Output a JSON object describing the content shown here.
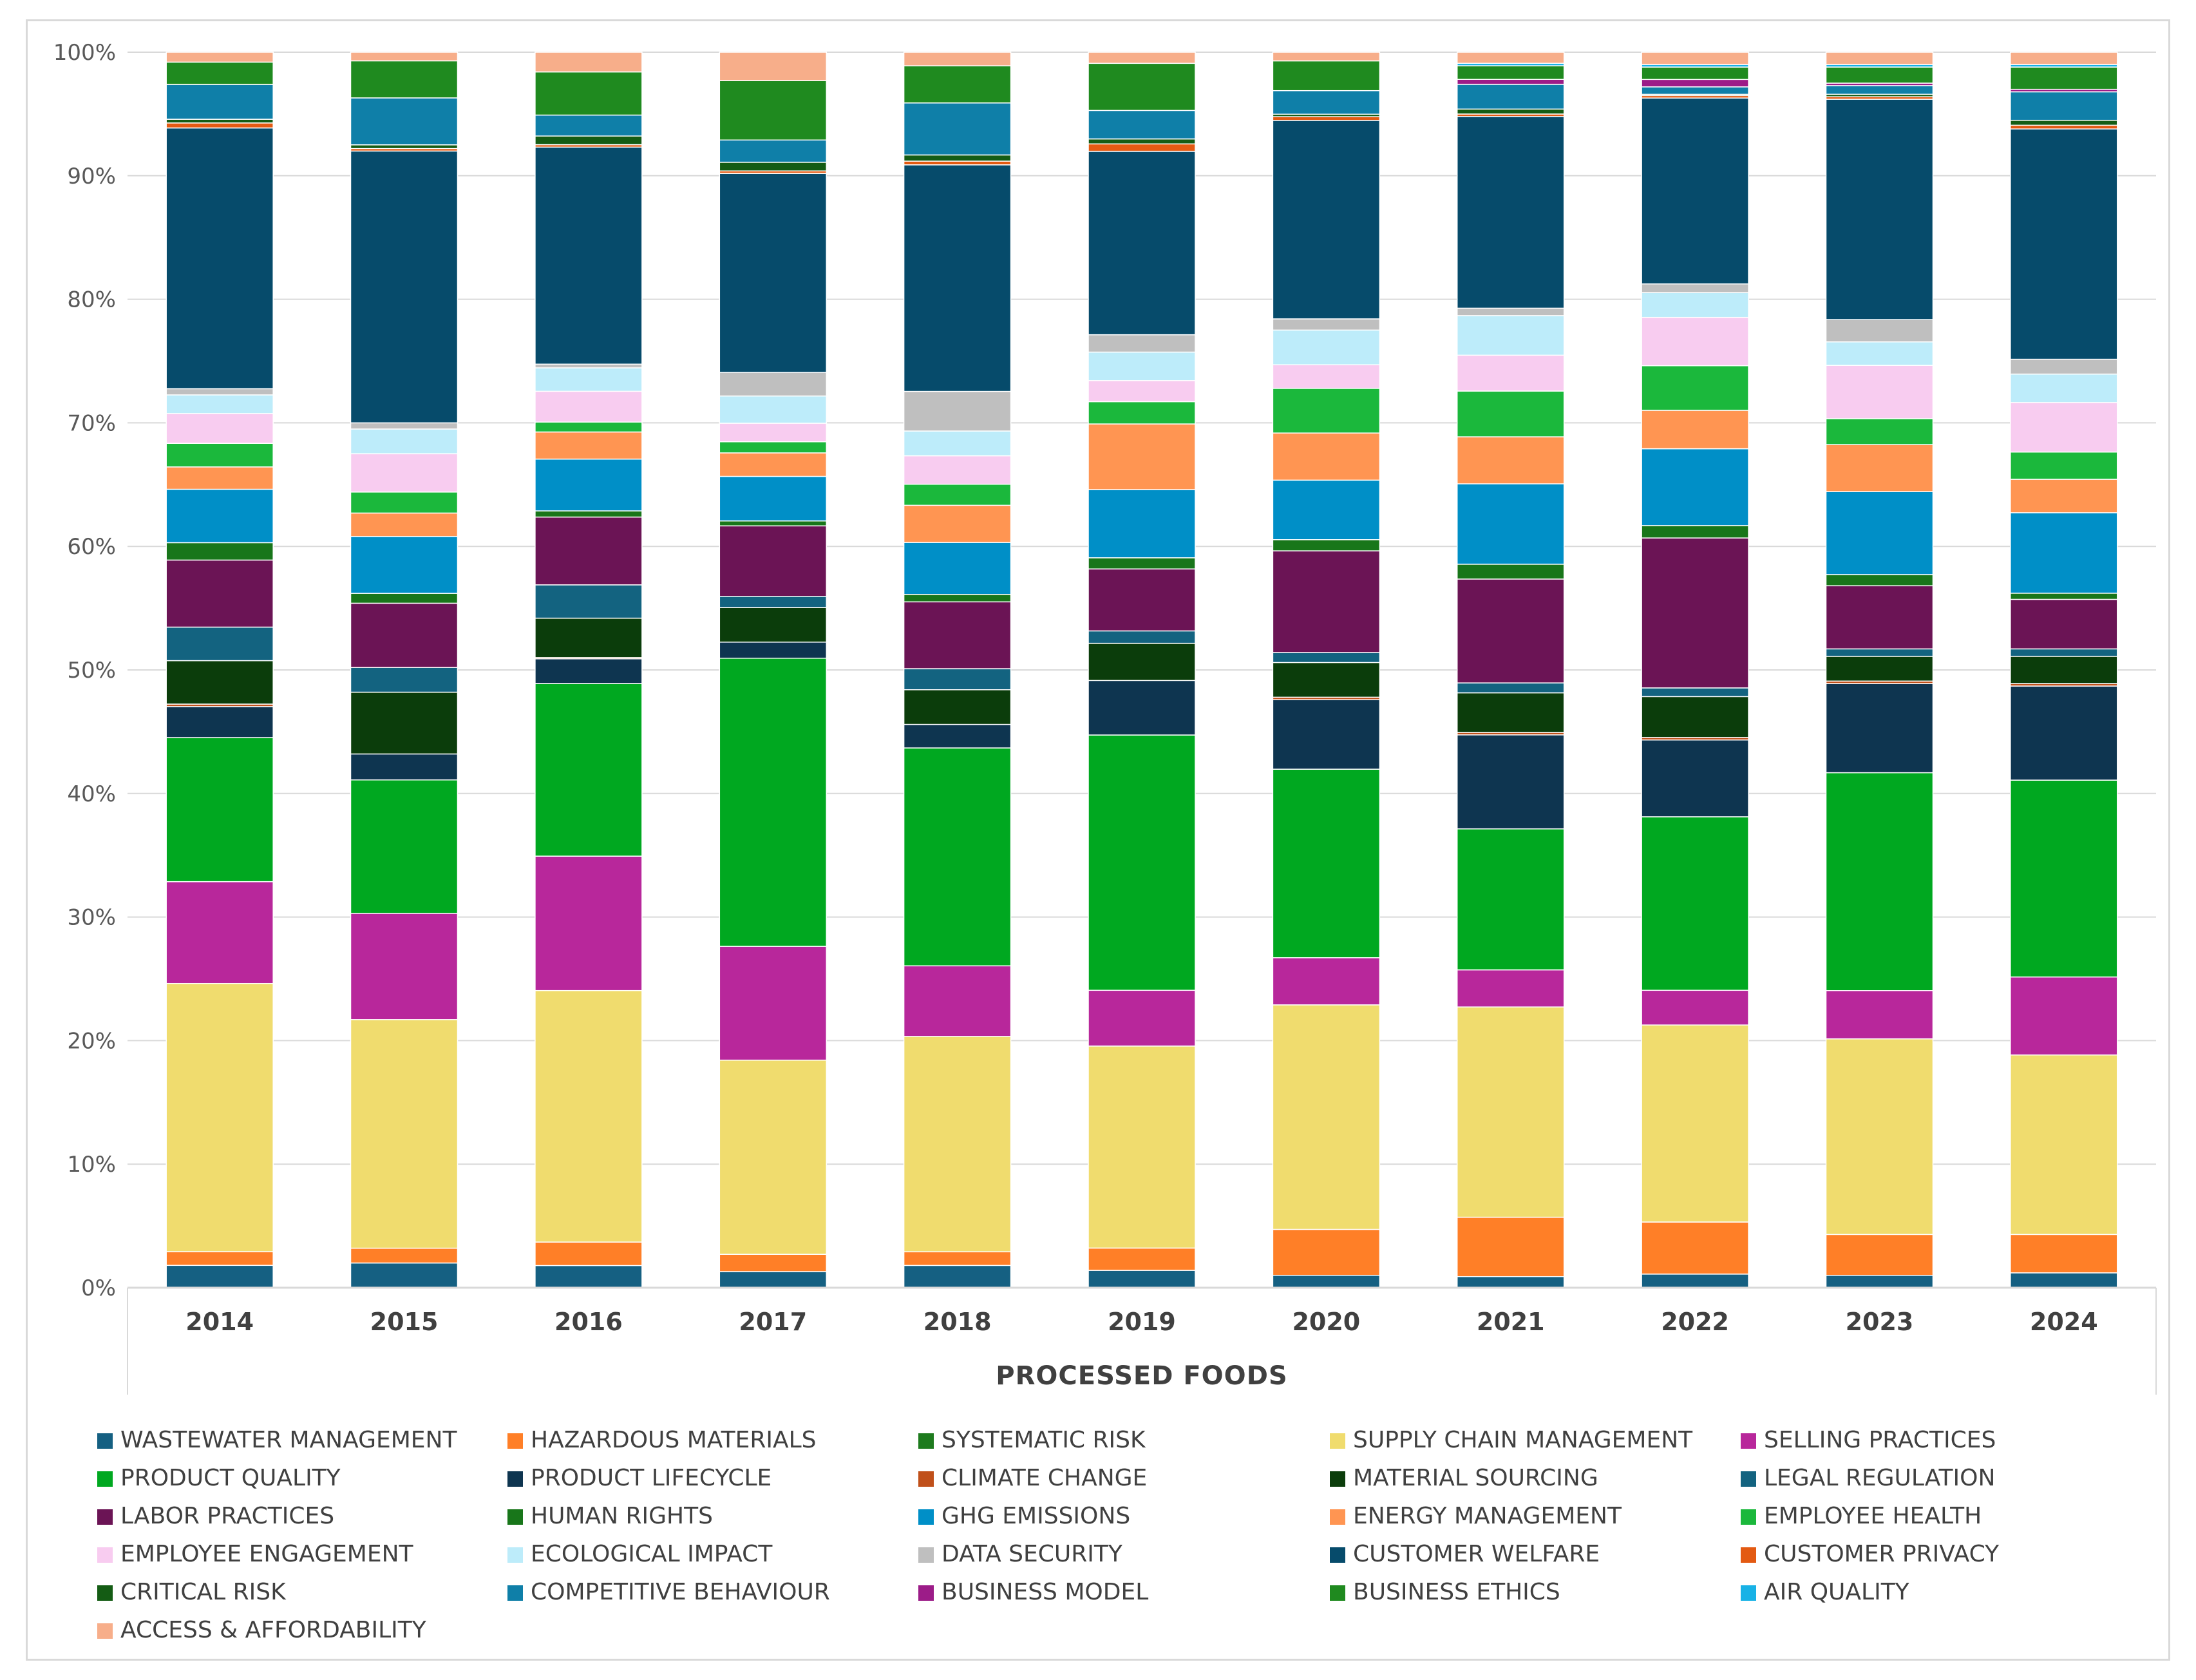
{
  "chart_data": {
    "type": "bar",
    "stacked": true,
    "normalized": true,
    "title": "",
    "xlabel": "PROCESSED FOODS",
    "ylabel": "",
    "ylim": [
      0,
      100
    ],
    "y_ticks": [
      "0%",
      "10%",
      "20%",
      "30%",
      "40%",
      "50%",
      "60%",
      "70%",
      "80%",
      "90%",
      "100%"
    ],
    "grid": true,
    "legend_position": "bottom",
    "categories": [
      "2014",
      "2015",
      "2016",
      "2017",
      "2018",
      "2019",
      "2020",
      "2021",
      "2022",
      "2023",
      "2024"
    ],
    "series": [
      {
        "name": "WASTEWATER MANAGEMENT",
        "color": "#156082",
        "values": [
          1.8,
          2.0,
          1.8,
          1.3,
          1.8,
          1.4,
          1.0,
          0.9,
          1.1,
          1.0,
          1.2
        ]
      },
      {
        "name": "HAZARDOUS MATERIALS",
        "color": "#FF7F27",
        "values": [
          1.1,
          1.2,
          1.9,
          1.4,
          1.1,
          1.8,
          3.7,
          4.8,
          4.2,
          3.3,
          3.1
        ]
      },
      {
        "name": "SYSTEMATIC RISK",
        "color": "#1E7B1E",
        "values": [
          0,
          0,
          0,
          0,
          0,
          0,
          0,
          0,
          0,
          0,
          0
        ]
      },
      {
        "name": "SUPPLY CHAIN MANAGEMENT",
        "color": "#F0DC6E",
        "values": [
          21.6,
          18.5,
          20.4,
          15.7,
          17.4,
          16.3,
          18.1,
          17.0,
          15.9,
          15.8,
          14.5
        ]
      },
      {
        "name": "SELLING PRACTICES",
        "color": "#B8279B",
        "values": [
          8.2,
          8.6,
          10.9,
          9.2,
          5.7,
          4.5,
          3.8,
          3.0,
          2.8,
          3.9,
          6.3
        ]
      },
      {
        "name": "PRODUCT QUALITY",
        "color": "#00A820",
        "values": [
          11.6,
          10.8,
          14.0,
          23.3,
          17.6,
          20.6,
          15.2,
          11.4,
          14.0,
          17.6,
          15.9
        ]
      },
      {
        "name": "PRODUCT LIFECYCLE",
        "color": "#0E3550",
        "values": [
          2.5,
          2.1,
          2.0,
          1.3,
          1.9,
          4.4,
          5.6,
          7.6,
          6.2,
          7.2,
          7.6
        ]
      },
      {
        "name": "CLIMATE CHANGE",
        "color": "#C0501A",
        "values": [
          0.2,
          0,
          0.1,
          0,
          0,
          0,
          0.2,
          0.2,
          0.2,
          0.2,
          0.2
        ]
      },
      {
        "name": "MATERIAL SOURCING",
        "color": "#0B3D0B",
        "values": [
          3.5,
          5.0,
          3.2,
          2.8,
          2.8,
          3.0,
          2.8,
          3.2,
          3.3,
          2.0,
          2.2
        ]
      },
      {
        "name": "LEGAL REGULATION",
        "color": "#136380",
        "values": [
          2.7,
          2.0,
          2.7,
          0.9,
          1.7,
          1.0,
          0.8,
          0.8,
          0.7,
          0.6,
          0.6
        ]
      },
      {
        "name": "LABOR PRACTICES",
        "color": "#6B1455",
        "values": [
          5.4,
          5.2,
          5.5,
          5.7,
          5.4,
          5.0,
          8.2,
          8.4,
          12.1,
          5.1,
          4.0
        ]
      },
      {
        "name": "HUMAN RIGHTS",
        "color": "#18761A",
        "values": [
          1.4,
          0.8,
          0.5,
          0.4,
          0.6,
          0.9,
          0.9,
          1.2,
          1.0,
          0.9,
          0.5
        ]
      },
      {
        "name": "GHG EMISSIONS",
        "color": "#008FC7",
        "values": [
          4.3,
          4.6,
          4.2,
          3.6,
          4.2,
          5.5,
          4.8,
          6.5,
          6.2,
          6.7,
          6.5
        ]
      },
      {
        "name": "ENERGY MANAGEMENT",
        "color": "#FF9552",
        "values": [
          1.8,
          1.9,
          2.2,
          1.9,
          3.0,
          5.3,
          3.8,
          3.8,
          3.1,
          3.8,
          2.7
        ]
      },
      {
        "name": "EMPLOYEE HEALTH",
        "color": "#1BB83C",
        "values": [
          1.9,
          1.7,
          0.8,
          0.9,
          1.7,
          1.8,
          3.6,
          3.7,
          3.6,
          2.1,
          2.2
        ]
      },
      {
        "name": "EMPLOYEE ENGAGEMENT",
        "color": "#F8CCF0",
        "values": [
          2.4,
          3.1,
          2.5,
          1.5,
          2.3,
          1.7,
          1.9,
          2.9,
          3.9,
          4.3,
          4.0
        ]
      },
      {
        "name": "ECOLOGICAL IMPACT",
        "color": "#BDECFA",
        "values": [
          1.5,
          2.0,
          1.9,
          2.2,
          2.0,
          2.3,
          2.8,
          3.2,
          2.0,
          1.9,
          2.3
        ]
      },
      {
        "name": "DATA SECURITY",
        "color": "#BFBFBF",
        "values": [
          0.5,
          0.5,
          0.3,
          1.9,
          3.2,
          1.4,
          0.9,
          0.6,
          0.7,
          1.8,
          1.2
        ]
      },
      {
        "name": "CUSTOMER WELFARE",
        "color": "#064B6B",
        "values": [
          21.0,
          22.0,
          17.6,
          16.1,
          18.3,
          14.8,
          16.0,
          15.5,
          15.0,
          17.8,
          18.6
        ]
      },
      {
        "name": "CUSTOMER PRIVACY",
        "color": "#E35A12",
        "values": [
          0.4,
          0.2,
          0.2,
          0.2,
          0.3,
          0.6,
          0.3,
          0.2,
          0.2,
          0.2,
          0.3
        ]
      },
      {
        "name": "CRITICAL RISK",
        "color": "#145C14",
        "values": [
          0.3,
          0.3,
          0.7,
          0.7,
          0.5,
          0.4,
          0.2,
          0.4,
          0.1,
          0.2,
          0.4
        ]
      },
      {
        "name": "COMPETITIVE BEHAVIOUR",
        "color": "#0F7FA8",
        "values": [
          2.8,
          3.8,
          1.7,
          1.8,
          4.2,
          2.3,
          1.9,
          2.0,
          0.6,
          0.7,
          2.3
        ]
      },
      {
        "name": "BUSINESS MODEL",
        "color": "#9C1C88",
        "values": [
          0,
          0,
          0,
          0,
          0,
          0,
          0,
          0.4,
          0.6,
          0.2,
          0.2
        ]
      },
      {
        "name": "BUSINESS ETHICS",
        "color": "#1F8A1F",
        "values": [
          1.8,
          3.0,
          3.5,
          4.8,
          3.0,
          3.8,
          2.4,
          1.1,
          1.0,
          1.3,
          1.8
        ]
      },
      {
        "name": "AIR QUALITY",
        "color": "#18B2E6",
        "values": [
          0,
          0,
          0,
          0,
          0,
          0,
          0,
          0.2,
          0.2,
          0.2,
          0.2
        ]
      },
      {
        "name": "ACCESS & AFFORDABILITY",
        "color": "#F7AE8A",
        "values": [
          0.8,
          0.7,
          1.6,
          2.3,
          1.1,
          0.9,
          0.7,
          0.9,
          1.0,
          1.0,
          1.0
        ]
      }
    ]
  }
}
